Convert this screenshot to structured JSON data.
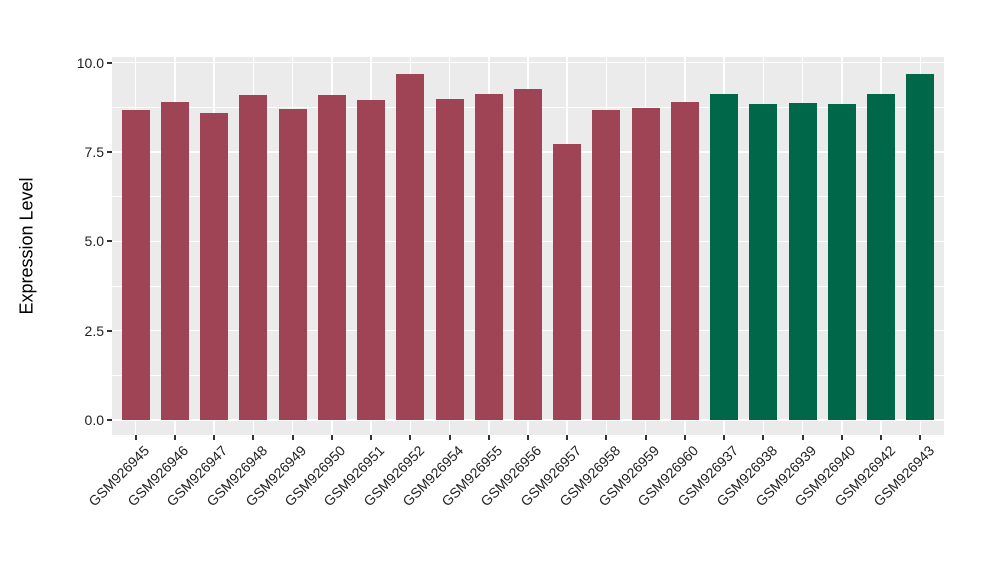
{
  "figure": {
    "background_color": "#FFFFFF",
    "panel_background_color": "#EBEBEB",
    "gridline_color": "#FFFFFF",
    "tick_mark_color": "#333333",
    "axis_text_color": "#1F1F1F"
  },
  "chart_data": {
    "type": "bar",
    "title": "",
    "xlabel": "",
    "ylabel": "Expression Level",
    "ylim": [
      0,
      10.16
    ],
    "grid": true,
    "legend": "none",
    "y_ticks": [
      {
        "label": "0.0",
        "value": 0.0
      },
      {
        "label": "2.5",
        "value": 2.5
      },
      {
        "label": "5.0",
        "value": 5.0
      },
      {
        "label": "7.5",
        "value": 7.5
      },
      {
        "label": "10.0",
        "value": 10.0
      }
    ],
    "y_minor_ticks": [
      1.25,
      3.75,
      6.25,
      8.75
    ],
    "series": [
      {
        "color": "#9E4454",
        "categories": [
          "GSM926945",
          "GSM926946",
          "GSM926947",
          "GSM926948",
          "GSM926949",
          "GSM926950",
          "GSM926951",
          "GSM926952",
          "GSM926954",
          "GSM926955",
          "GSM926956",
          "GSM926957",
          "GSM926958",
          "GSM926959",
          "GSM926960"
        ],
        "values": [
          8.67,
          8.91,
          8.6,
          9.1,
          8.7,
          9.1,
          8.97,
          9.67,
          8.98,
          9.13,
          9.25,
          7.73,
          8.69,
          8.73,
          8.91
        ]
      },
      {
        "color": "#006849",
        "categories": [
          "GSM926937",
          "GSM926938",
          "GSM926939",
          "GSM926940",
          "GSM926942",
          "GSM926943"
        ],
        "values": [
          9.12,
          8.84,
          8.87,
          8.84,
          9.13,
          9.68
        ]
      }
    ]
  }
}
